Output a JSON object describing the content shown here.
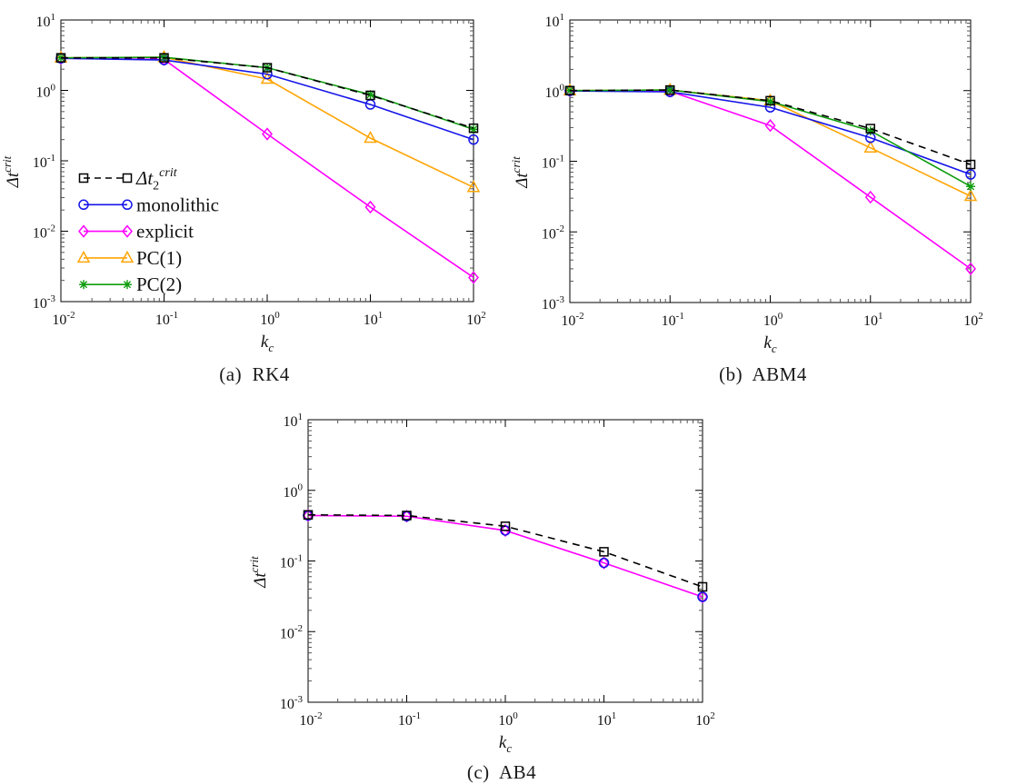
{
  "figure": {
    "background": "#ffffff",
    "axis_color": "#000000",
    "minor_tick_color": "#555555"
  },
  "captions": {
    "a": "(a)  RK4",
    "b": "(b)  ABM4",
    "c": "(c)  AB4"
  },
  "chart_data": [
    {
      "type": "line",
      "id": "rk4",
      "title": "(a)  RK4",
      "xlabel": "k_{c}",
      "ylabel": "Δt^{crit}",
      "xscale": "log",
      "yscale": "log",
      "xlim": [
        0.01,
        100
      ],
      "ylim": [
        0.001,
        10
      ],
      "x_tick_exponents": [
        -2,
        -1,
        0,
        1,
        2
      ],
      "y_tick_exponents": [
        1,
        0,
        -1,
        -2,
        -3
      ],
      "grid": false,
      "legend": true,
      "legend_position": "inside-left-lower",
      "x": [
        0.01,
        0.1,
        1,
        10,
        100
      ],
      "series": [
        {
          "name": "Δt_{2}^{crit}",
          "color": "#000000",
          "line": "dashed",
          "marker": "square",
          "z": 5,
          "values": [
            2.9,
            2.9,
            2.1,
            0.85,
            0.29
          ]
        },
        {
          "name": "monolithic",
          "color": "#1414e8",
          "line": "solid",
          "marker": "circle",
          "z": 3,
          "values": [
            2.85,
            2.7,
            1.7,
            0.63,
            0.2
          ]
        },
        {
          "name": "explicit",
          "color": "#ff00ff",
          "line": "solid",
          "marker": "diamond",
          "z": 1,
          "values": [
            2.85,
            2.75,
            0.24,
            0.022,
            0.0022
          ]
        },
        {
          "name": "PC(1)",
          "color": "#ffa506",
          "line": "solid",
          "marker": "triangle",
          "z": 2,
          "values": [
            2.9,
            2.95,
            1.45,
            0.21,
            0.042
          ]
        },
        {
          "name": "PC(2)",
          "color": "#0e9c0e",
          "line": "solid",
          "marker": "star",
          "z": 4,
          "values": [
            2.9,
            2.95,
            2.1,
            0.87,
            0.28
          ]
        }
      ]
    },
    {
      "type": "line",
      "id": "abm4",
      "title": "(b)  ABM4",
      "xlabel": "k_{c}",
      "ylabel": "Δt^{crit}",
      "xscale": "log",
      "yscale": "log",
      "xlim": [
        0.01,
        100
      ],
      "ylim": [
        0.001,
        10
      ],
      "x_tick_exponents": [
        -2,
        -1,
        0,
        1,
        2
      ],
      "y_tick_exponents": [
        1,
        0,
        -1,
        -2,
        -3
      ],
      "grid": false,
      "legend": false,
      "x": [
        0.01,
        0.1,
        1,
        10,
        100
      ],
      "series": [
        {
          "name": "Δt_{2}^{crit}",
          "color": "#000000",
          "line": "dashed",
          "marker": "square",
          "z": 5,
          "values": [
            1.0,
            1.02,
            0.72,
            0.29,
            0.09
          ]
        },
        {
          "name": "monolithic",
          "color": "#1414e8",
          "line": "solid",
          "marker": "circle",
          "z": 3,
          "values": [
            0.99,
            0.96,
            0.58,
            0.215,
            0.065
          ]
        },
        {
          "name": "explicit",
          "color": "#ff00ff",
          "line": "solid",
          "marker": "diamond",
          "z": 1,
          "values": [
            1.0,
            0.98,
            0.32,
            0.031,
            0.003
          ]
        },
        {
          "name": "PC(1)",
          "color": "#ffa506",
          "line": "solid",
          "marker": "triangle",
          "z": 2,
          "values": [
            1.0,
            1.02,
            0.72,
            0.155,
            0.032
          ]
        },
        {
          "name": "PC(2)",
          "color": "#0e9c0e",
          "line": "solid",
          "marker": "star",
          "z": 4,
          "values": [
            1.0,
            1.02,
            0.7,
            0.27,
            0.044
          ]
        }
      ]
    },
    {
      "type": "line",
      "id": "ab4",
      "title": "(c)  AB4",
      "xlabel": "k_{c}",
      "ylabel": "Δt^{crit}",
      "xscale": "log",
      "yscale": "log",
      "xlim": [
        0.01,
        100
      ],
      "ylim": [
        0.001,
        10
      ],
      "x_tick_exponents": [
        -2,
        -1,
        0,
        1,
        2
      ],
      "y_tick_exponents": [
        1,
        0,
        -1,
        -2,
        -3
      ],
      "grid": false,
      "legend": false,
      "x": [
        0.01,
        0.1,
        1,
        10,
        100
      ],
      "series": [
        {
          "name": "Δt_{2}^{crit}",
          "color": "#000000",
          "line": "dashed",
          "marker": "square",
          "z": 3,
          "values": [
            0.45,
            0.44,
            0.31,
            0.135,
            0.043
          ]
        },
        {
          "name": "explicit",
          "color": "#ff00ff",
          "line": "solid",
          "marker": "diamond",
          "z": 1,
          "values": [
            0.44,
            0.43,
            0.27,
            0.094,
            0.031
          ]
        },
        {
          "name": "monolithic",
          "color": "#1414e8",
          "line": "none",
          "marker": "circle",
          "z": 2,
          "values": [
            0.44,
            0.43,
            0.27,
            0.094,
            0.031
          ]
        }
      ]
    }
  ]
}
